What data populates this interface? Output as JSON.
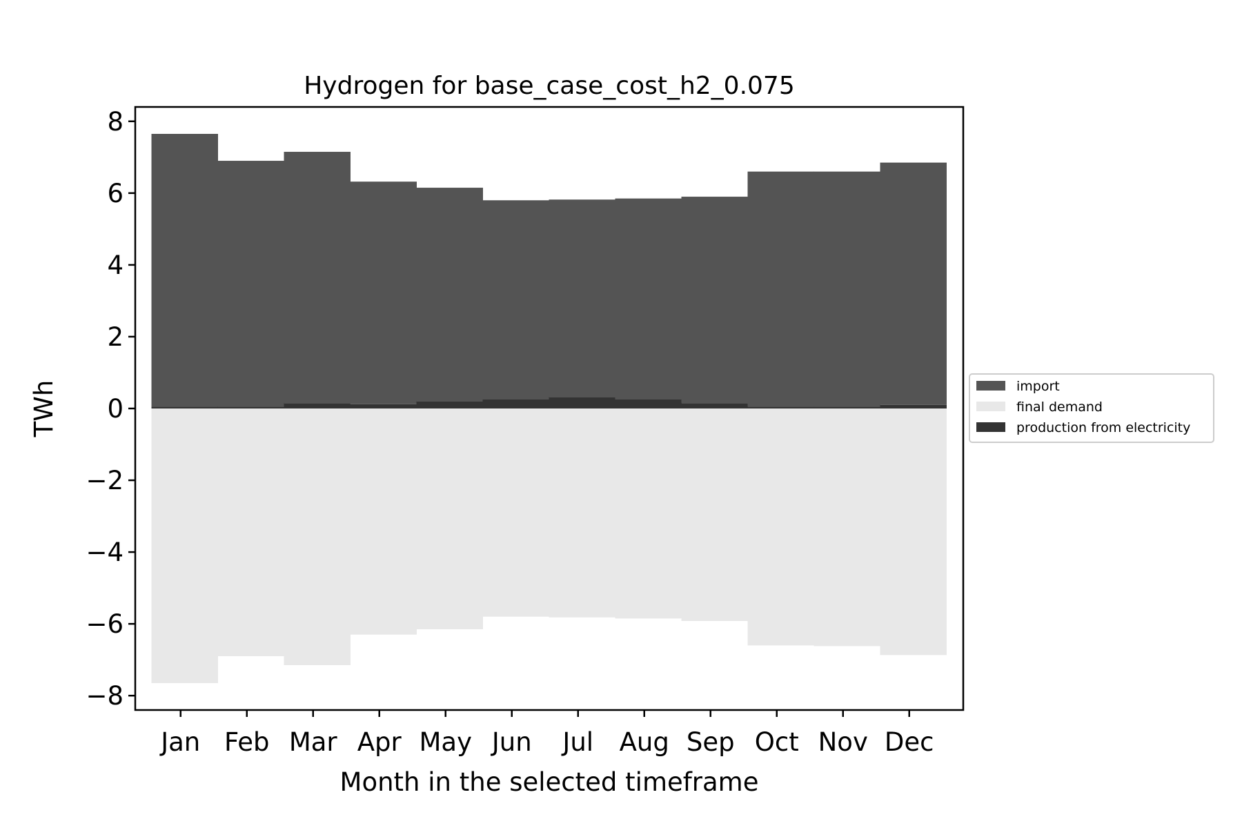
{
  "chart_data": {
    "type": "bar",
    "title": "Hydrogen for base_case_cost_h2_0.075",
    "xlabel": "Month in the selected timeframe",
    "ylabel": "TWh",
    "categories": [
      "Jan",
      "Feb",
      "Mar",
      "Apr",
      "May",
      "Jun",
      "Jul",
      "Aug",
      "Sep",
      "Oct",
      "Nov",
      "Dec"
    ],
    "ylim": [
      -8.4,
      8.4
    ],
    "yticks": [
      8,
      6,
      4,
      2,
      0,
      -2,
      -4,
      -6,
      -8
    ],
    "ytick_labels": [
      "8",
      "6",
      "4",
      "2",
      "0",
      "−2",
      "−4",
      "−6",
      "−8"
    ],
    "stacked": true,
    "series": [
      {
        "name": "import",
        "color": "#545454",
        "values": [
          7.6,
          6.85,
          7.0,
          6.2,
          5.95,
          5.55,
          5.5,
          5.6,
          5.75,
          6.55,
          6.55,
          6.75
        ]
      },
      {
        "name": "final demand",
        "color": "#e8e8e8",
        "values": [
          -7.65,
          -6.9,
          -7.15,
          -6.3,
          -6.15,
          -5.8,
          -5.82,
          -5.85,
          -5.92,
          -6.6,
          -6.62,
          -6.87
        ]
      },
      {
        "name": "production from electricity",
        "color": "#333333",
        "values": [
          0.05,
          0.05,
          0.15,
          0.12,
          0.2,
          0.25,
          0.32,
          0.25,
          0.15,
          0.05,
          0.05,
          0.1
        ]
      }
    ],
    "grid": false,
    "legend_position": "right"
  }
}
